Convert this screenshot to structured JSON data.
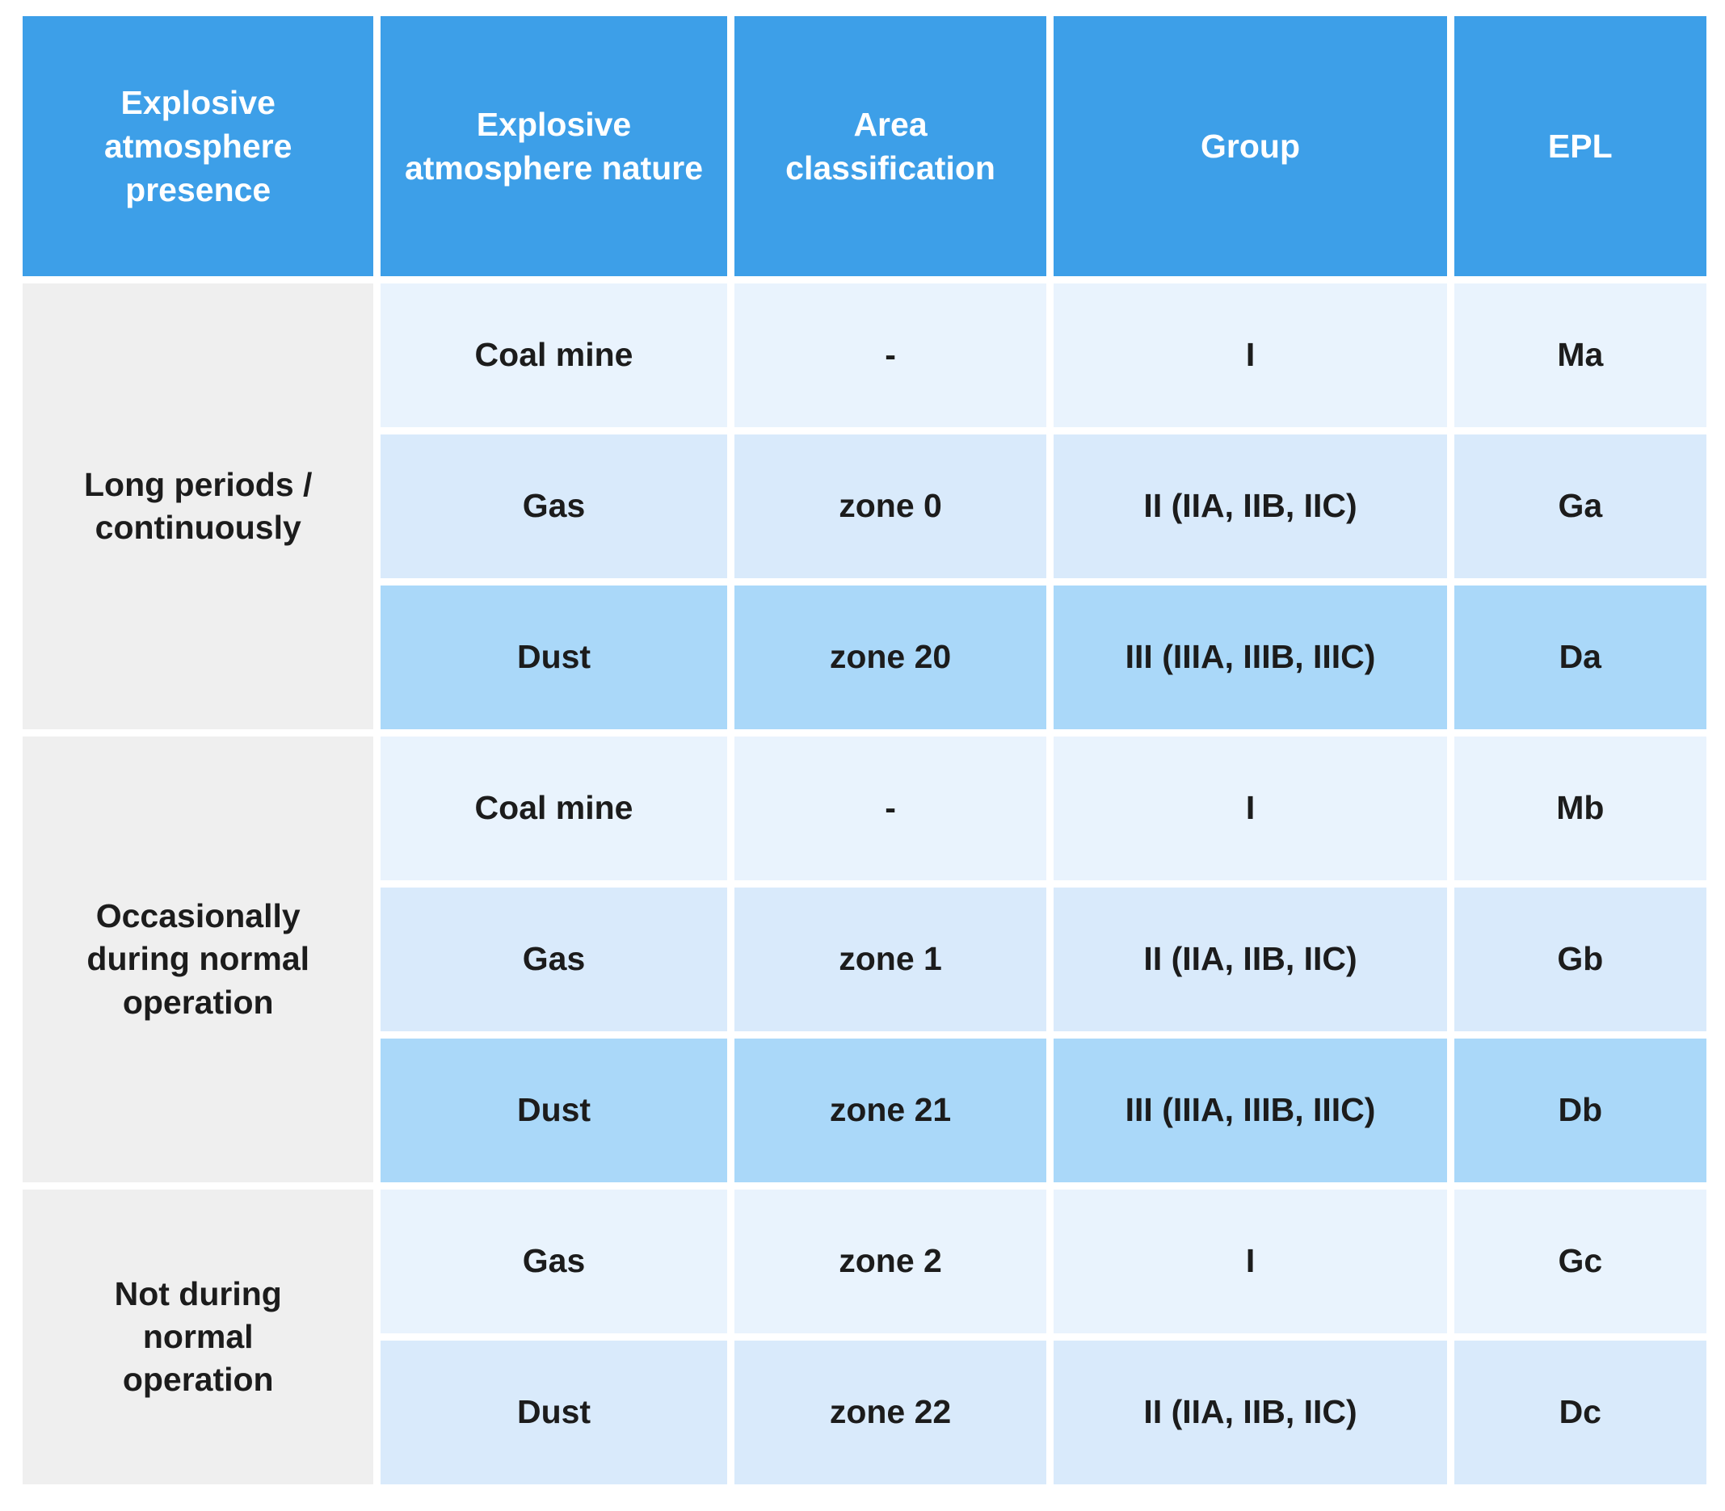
{
  "colors": {
    "page_bg": "#FFFFFF",
    "header_bg": "#3D9FE8",
    "header_text": "#FFFFFF",
    "presence_bg": "#EFEFEF",
    "row_shades": [
      "#E9F3FD",
      "#D9EAFB",
      "#AAD8F9"
    ],
    "body_text": "#1C1C1C"
  },
  "chart_data": {
    "type": "table",
    "columns": [
      "Explosive atmosphere presence",
      "Explosive atmosphere nature",
      "Area classification",
      "Group",
      "EPL"
    ],
    "groups": [
      {
        "presence": "Long periods / continuously",
        "rows": [
          {
            "nature": "Coal mine",
            "area": "-",
            "group": "I",
            "epl": "Ma"
          },
          {
            "nature": "Gas",
            "area": "zone 0",
            "group": "II (IIA, IIB, IIC)",
            "epl": "Ga"
          },
          {
            "nature": "Dust",
            "area": "zone 20",
            "group": "III (IIIA, IIIB, IIIC)",
            "epl": "Da"
          }
        ]
      },
      {
        "presence": "Occasionally during normal operation",
        "rows": [
          {
            "nature": "Coal mine",
            "area": "-",
            "group": "I",
            "epl": "Mb"
          },
          {
            "nature": "Gas",
            "area": "zone 1",
            "group": "II (IIA, IIB, IIC)",
            "epl": "Gb"
          },
          {
            "nature": "Dust",
            "area": "zone 21",
            "group": "III (IIIA, IIIB, IIIC)",
            "epl": "Db"
          }
        ]
      },
      {
        "presence": "Not during normal operation",
        "rows": [
          {
            "nature": "Gas",
            "area": "zone 2",
            "group": "I",
            "epl": "Gc"
          },
          {
            "nature": "Dust",
            "area": "zone 22",
            "group": "II (IIA, IIB, IIC)",
            "epl": "Dc"
          }
        ]
      }
    ]
  }
}
